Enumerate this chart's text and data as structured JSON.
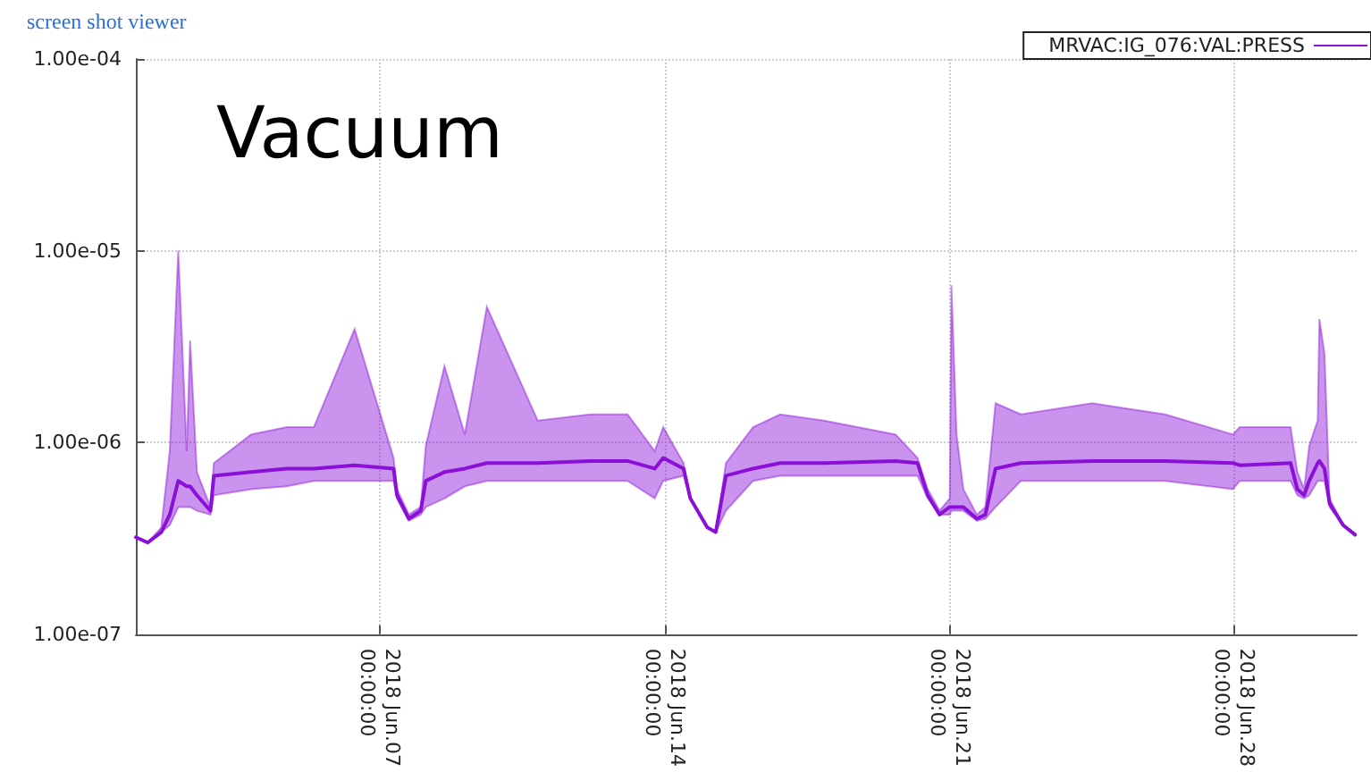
{
  "chart_data": {
    "type": "line",
    "title": "Vacuum",
    "annotations": [
      "screen shot viewer"
    ],
    "x": [
      "2018-06-01T00:00",
      "2018-06-01T07:00",
      "2018-06-01T15:00",
      "2018-06-01T20:00",
      "2018-06-02T01:00",
      "2018-06-02T06:00",
      "2018-06-02T08:00",
      "2018-06-02T12:00",
      "2018-06-02T20:00",
      "2018-06-02T22:00",
      "2018-06-03T20:00",
      "2018-06-04T17:00",
      "2018-06-05T09:00",
      "2018-06-06T09:00",
      "2018-06-07T08:00",
      "2018-06-07T10:00",
      "2018-06-07T17:00",
      "2018-06-08T00:00",
      "2018-06-08T03:00",
      "2018-06-08T14:00",
      "2018-06-09T02:00",
      "2018-06-09T15:00",
      "2018-06-10T21:00",
      "2018-06-12T04:00",
      "2018-06-13T02:00",
      "2018-06-13T18:00",
      "2018-06-13T23:00",
      "2018-06-14T11:00",
      "2018-06-14T15:00",
      "2018-06-15T01:00",
      "2018-06-15T06:00",
      "2018-06-15T12:00",
      "2018-06-16T04:00",
      "2018-06-16T20:00",
      "2018-06-17T22:00",
      "2018-06-19T16:00",
      "2018-06-20T05:00",
      "2018-06-20T11:00",
      "2018-06-20T18:00",
      "2018-06-21T00:00",
      "2018-06-21T01:00",
      "2018-06-21T04:00",
      "2018-06-21T08:00",
      "2018-06-21T16:00",
      "2018-06-21T21:00",
      "2018-06-22T03:00",
      "2018-06-22T18:00",
      "2018-06-24T12:00",
      "2018-06-26T07:00",
      "2018-06-27T23:00",
      "2018-06-28T03:00",
      "2018-06-29T09:00",
      "2018-06-29T13:00",
      "2018-06-29T17:00",
      "2018-06-29T20:00",
      "2018-06-30T01:00",
      "2018-06-30T02:00",
      "2018-06-30T05:00",
      "2018-06-30T08:00",
      "2018-06-30T16:00",
      "2018-06-30T23:00"
    ],
    "series": [
      {
        "name": "MRVAC:IG_076:VAL:PRESS",
        "color": "#8a10d8",
        "values": [
          3.2e-07,
          3e-07,
          3.4e-07,
          4.2e-07,
          6.3e-07,
          5.9e-07,
          5.9e-07,
          5.3e-07,
          4.4e-07,
          6.7e-07,
          7e-07,
          7.3e-07,
          7.3e-07,
          7.6e-07,
          7.3e-07,
          5.3e-07,
          4e-07,
          4.4e-07,
          6.3e-07,
          7e-07,
          7.3e-07,
          7.8e-07,
          7.8e-07,
          8e-07,
          8e-07,
          7.3e-07,
          8.3e-07,
          7.3e-07,
          5.1e-07,
          3.6e-07,
          3.4e-07,
          6.7e-07,
          7.3e-07,
          7.8e-07,
          7.8e-07,
          8e-07,
          7.8e-07,
          5.3e-07,
          4.2e-07,
          4.6e-07,
          4.6e-07,
          4.6e-07,
          4.6e-07,
          4e-07,
          4.2e-07,
          7.3e-07,
          7.8e-07,
          8e-07,
          8e-07,
          7.8e-07,
          7.6e-07,
          7.8e-07,
          5.7e-07,
          5.3e-07,
          6.3e-07,
          7.8e-07,
          8e-07,
          7.3e-07,
          4.8e-07,
          3.7e-07,
          3.3e-07
        ],
        "lower": [
          3.2e-07,
          3e-07,
          3.4e-07,
          3.7e-07,
          4.6e-07,
          4.6e-07,
          4.6e-07,
          4.4e-07,
          4.2e-07,
          5.3e-07,
          5.7e-07,
          5.9e-07,
          6.3e-07,
          6.3e-07,
          6.3e-07,
          5.1e-07,
          3.9e-07,
          4.2e-07,
          4.6e-07,
          5.1e-07,
          5.9e-07,
          6.3e-07,
          6.3e-07,
          6.3e-07,
          6.3e-07,
          5.1e-07,
          6.3e-07,
          6.7e-07,
          5.1e-07,
          3.6e-07,
          3.4e-07,
          4.4e-07,
          6.3e-07,
          6.7e-07,
          6.7e-07,
          6.7e-07,
          6.7e-07,
          5.1e-07,
          4.2e-07,
          4.2e-07,
          4.4e-07,
          4.4e-07,
          4.4e-07,
          3.9e-07,
          4e-07,
          4.6e-07,
          6.3e-07,
          6.3e-07,
          6.3e-07,
          5.7e-07,
          6.3e-07,
          6.3e-07,
          5.3e-07,
          5.1e-07,
          5.3e-07,
          6.3e-07,
          6.3e-07,
          6.3e-07,
          4.6e-07,
          3.7e-07,
          3.3e-07
        ],
        "upper": [
          3.2e-07,
          3e-07,
          3.6e-07,
          9e-07,
          1e-05,
          9e-07,
          3.4e-06,
          7e-07,
          4.6e-07,
          7.8e-07,
          1.1e-06,
          1.2e-06,
          1.2e-06,
          3.9e-06,
          8.3e-07,
          5.7e-07,
          4.2e-07,
          4.6e-07,
          9.6e-07,
          2.5e-06,
          1.1e-06,
          5.1e-06,
          1.3e-06,
          1.4e-06,
          1.4e-06,
          9e-07,
          1.2e-06,
          7.8e-07,
          5.1e-07,
          3.6e-07,
          3.4e-07,
          7.8e-07,
          1.2e-06,
          1.4e-06,
          1.3e-06,
          1.1e-06,
          8.3e-07,
          5.7e-07,
          4.4e-07,
          5.1e-07,
          6.6e-06,
          1.1e-06,
          5.7e-07,
          4.2e-07,
          4.6e-07,
          1.6e-06,
          1.4e-06,
          1.6e-06,
          1.4e-06,
          1.1e-06,
          1.2e-06,
          1.2e-06,
          7e-07,
          5.7e-07,
          9.6e-07,
          1.3e-06,
          4.4e-06,
          2.9e-06,
          5.1e-07,
          3.7e-07,
          3.3e-07
        ]
      }
    ],
    "log": "y",
    "xlim": [
      "2018-06-01T00:00",
      "2018-07-01T00:00"
    ],
    "xticks": [
      {
        "value": "2018-06-07T00:00",
        "label": "2018 Jun.07\n00:00:00"
      },
      {
        "value": "2018-06-14T00:00",
        "label": "2018 Jun.14\n00:00:00"
      },
      {
        "value": "2018-06-21T00:00",
        "label": "2018 Jun.21\n00:00:00"
      },
      {
        "value": "2018-06-28T00:00",
        "label": "2018 Jun.28\n00:00:00"
      }
    ],
    "ylim": [
      1e-07,
      0.0001
    ],
    "yticks": [
      {
        "value": 1e-07,
        "label": "1.00e-07"
      },
      {
        "value": 1e-06,
        "label": "1.00e-06"
      },
      {
        "value": 1e-05,
        "label": "1.00e-05"
      },
      {
        "value": 0.0001,
        "label": "1.00e-04"
      }
    ],
    "grid": true,
    "legend": "top right",
    "marker": "none",
    "line_style": "solid"
  }
}
